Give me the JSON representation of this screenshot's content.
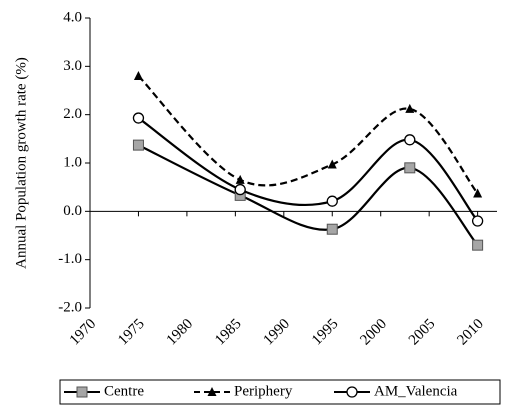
{
  "chart_data": {
    "type": "line",
    "y_label": "Annual Population growth rate (%)",
    "x": [
      1975,
      1985.5,
      1995,
      2003,
      2010
    ],
    "series": [
      {
        "name": "Centre",
        "color": "#000000",
        "dash": "solid",
        "marker": "square",
        "values": [
          1.37,
          0.33,
          -0.37,
          0.9,
          -0.7
        ]
      },
      {
        "name": "Periphery",
        "color": "#000000",
        "dash": "dashed",
        "marker": "triangle",
        "values": [
          2.8,
          0.65,
          0.97,
          2.12,
          0.37
        ]
      },
      {
        "name": "AM_Valencia",
        "color": "#000000",
        "dash": "solid",
        "marker": "circle",
        "values": [
          1.93,
          0.45,
          0.21,
          1.48,
          -0.2
        ]
      }
    ],
    "xlim": [
      1970,
      2012
    ],
    "xticks": [
      1970,
      1975,
      1980,
      1985,
      1990,
      1995,
      2000,
      2005,
      2010
    ],
    "ylim": [
      -2,
      4
    ],
    "yticks": [
      {
        "value": -2,
        "label": "-2.0"
      },
      {
        "value": -1,
        "label": "-1.0"
      },
      {
        "value": 0,
        "label": "0.0"
      },
      {
        "value": 1,
        "label": "1.0"
      },
      {
        "value": 2,
        "label": "2.0"
      },
      {
        "value": 3,
        "label": "3.0"
      },
      {
        "value": 4,
        "label": "4.0"
      }
    ],
    "legend": "bottom"
  }
}
